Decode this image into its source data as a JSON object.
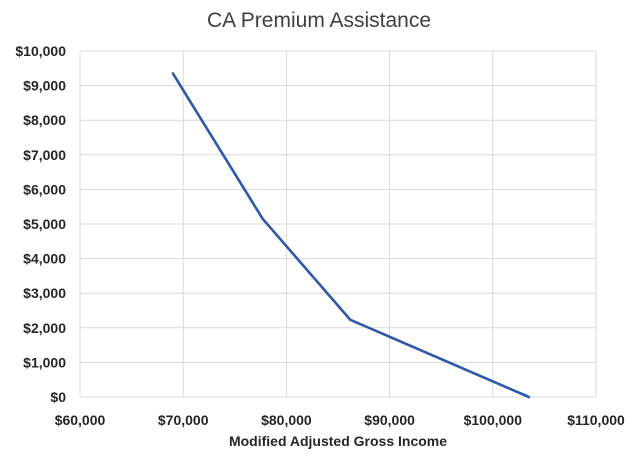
{
  "chart_data": {
    "type": "line",
    "title": "CA Premium Assistance",
    "xlabel": "Modified Adjusted Gross Income",
    "ylabel": "",
    "xlim": [
      60000,
      110000
    ],
    "ylim": [
      0,
      10000
    ],
    "grid": true,
    "legend": "none",
    "x_tick_labels": [
      "$60,000",
      "$70,000",
      "$80,000",
      "$90,000",
      "$100,000",
      "$110,000"
    ],
    "y_tick_labels": [
      "$0",
      "$1,000",
      "$2,000",
      "$3,000",
      "$4,000",
      "$5,000",
      "$6,000",
      "$7,000",
      "$8,000",
      "$9,000",
      "$10,000"
    ],
    "series": [
      {
        "name": "",
        "color": "#2e58a8",
        "x": [
          69000,
          77700,
          86200,
          103500
        ],
        "y": [
          9350,
          5150,
          2230,
          0
        ]
      }
    ]
  }
}
